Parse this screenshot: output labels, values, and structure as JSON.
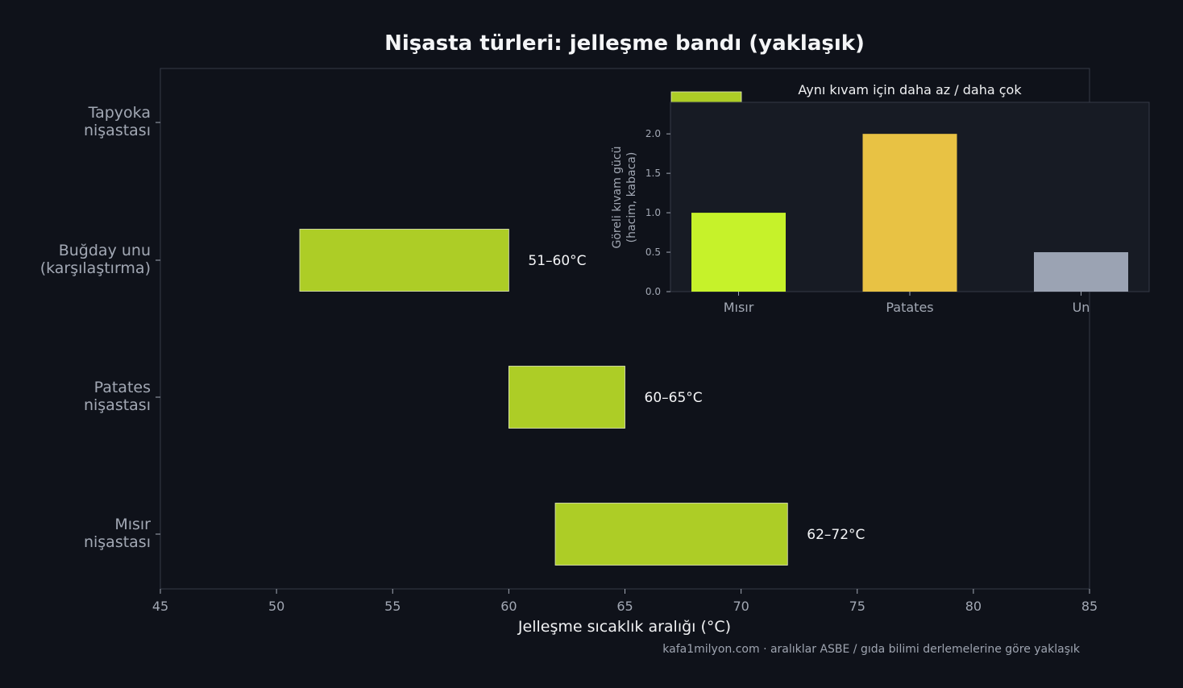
{
  "chart_data": [
    {
      "type": "bar",
      "orientation": "horizontal-range",
      "title": "Nişasta türleri: jelleşme bandı (yaklaşık)",
      "xlabel": "Jelleşme sıcaklık aralığı (°C)",
      "xlim": [
        45,
        85
      ],
      "xticks": [
        45,
        50,
        55,
        60,
        65,
        70,
        75,
        80,
        85
      ],
      "grid": false,
      "bar_color": "#adcd26",
      "categories": [
        [
          "Tapyoka",
          "nişastası"
        ],
        [
          "Buğday unu",
          "(karşılaştırma)"
        ],
        [
          "Patates",
          "nişastası"
        ],
        [
          "Mısır",
          "nişastası"
        ]
      ],
      "ranges": [
        null,
        [
          51,
          60
        ],
        [
          60,
          65
        ],
        [
          62,
          72
        ]
      ],
      "labels": [
        "",
        "51–60°C",
        "60–65°C",
        "62–72°C"
      ]
    },
    {
      "type": "bar",
      "title": "Aynı kıvam için daha az / daha çok",
      "ylabel": [
        "Göreli kıvam gücü",
        "(hacim, kabaca)"
      ],
      "ylim": [
        0,
        2.4
      ],
      "yticks": [
        0.0,
        0.5,
        1.0,
        1.5,
        2.0
      ],
      "categories": [
        "Mısır",
        "Patates",
        "Un"
      ],
      "values": [
        1.0,
        2.0,
        0.5
      ],
      "colors": [
        "#c6f22a",
        "#e8c244",
        "#9ba3b3"
      ]
    }
  ],
  "footer": {
    "source": "kafa1milyon.com  ·  aralıklar ASBE / gıda bilimi derlemelerine göre yaklaşık"
  }
}
